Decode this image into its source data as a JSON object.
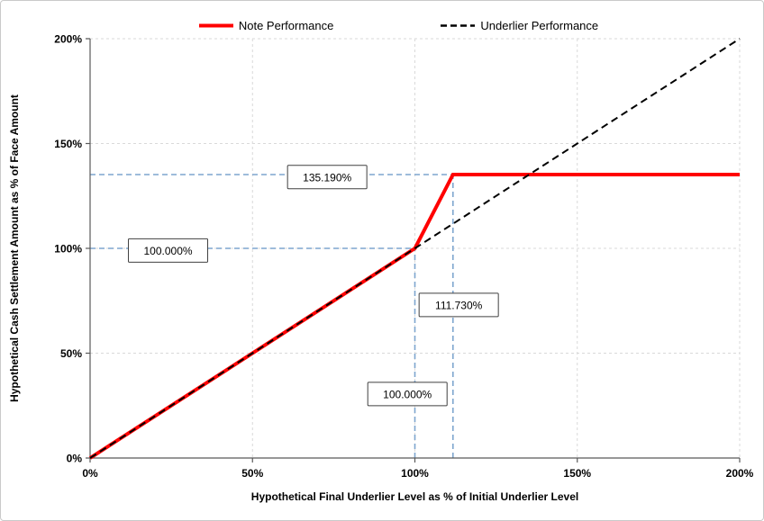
{
  "chart_data": {
    "type": "line",
    "title": "",
    "xlabel": "Hypothetical Final Underlier Level as % of Initial Underlier Level",
    "ylabel": "Hypothetical Cash Settlement Amount as % of Face Amount",
    "xlim": [
      0,
      200
    ],
    "ylim": [
      0,
      200
    ],
    "grid": {
      "color": "#d9d9d9",
      "dash": "3,3"
    },
    "axis_color": "#595959",
    "xticks": [
      {
        "value": 0,
        "label": "0%"
      },
      {
        "value": 50,
        "label": "50%"
      },
      {
        "value": 100,
        "label": "100%"
      },
      {
        "value": 150,
        "label": "150%"
      },
      {
        "value": 200,
        "label": "200%"
      }
    ],
    "yticks": [
      {
        "value": 0,
        "label": "0%"
      },
      {
        "value": 50,
        "label": "50%"
      },
      {
        "value": 100,
        "label": "100%"
      },
      {
        "value": 150,
        "label": "150%"
      },
      {
        "value": 200,
        "label": "200%"
      }
    ],
    "series": [
      {
        "name": "Note Performance",
        "color": "#ff0000",
        "width": 4,
        "dash": "",
        "points": [
          [
            0,
            0
          ],
          [
            100,
            100
          ],
          [
            111.73,
            135.19
          ],
          [
            200,
            135.19
          ]
        ]
      },
      {
        "name": "Underlier Performance",
        "color": "#000000",
        "width": 2,
        "dash": "8,5",
        "points": [
          [
            0,
            0
          ],
          [
            200,
            200
          ]
        ]
      }
    ],
    "guides": {
      "color": "#7ea6cf",
      "dash": "6,4",
      "lines": [
        {
          "x1": 0,
          "y1": 135.19,
          "x2": 111.73,
          "y2": 135.19
        },
        {
          "x1": 0,
          "y1": 100,
          "x2": 100,
          "y2": 100
        },
        {
          "x1": 100,
          "y1": 0,
          "x2": 100,
          "y2": 100
        },
        {
          "x1": 111.73,
          "y1": 0,
          "x2": 111.73,
          "y2": 135.19
        }
      ]
    },
    "annotations": [
      {
        "label": "135.190%",
        "x": 73,
        "y": 134
      },
      {
        "label": "100.000%",
        "x": 24,
        "y": 99
      },
      {
        "label": "111.730%",
        "x": 113.5,
        "y": 73
      },
      {
        "label": "100.000%",
        "x": 97.7,
        "y": 30.5
      }
    ]
  }
}
